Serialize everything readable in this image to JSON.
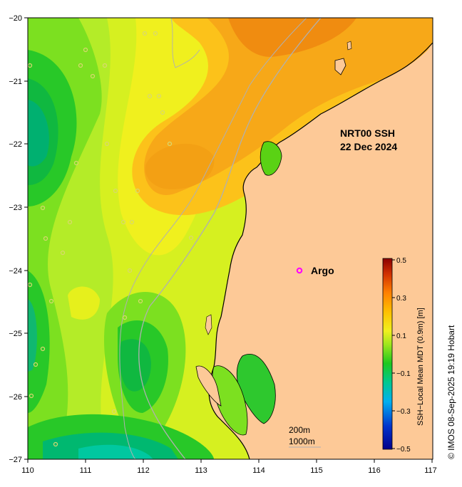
{
  "title": "NRT00 SSH",
  "date": "22 Dec 2024",
  "legend_marker": "Argo",
  "credit": "© IMOS 08-Sep-2025 19:19 Hobart",
  "scale": {
    "depth1": "200m",
    "depth2": "1000m"
  },
  "colorbar": {
    "title": "SSH−Local Mean MDT (0.9m) [m]",
    "ticks": [
      "0.5",
      "0.3",
      "0.1",
      "−0.1",
      "−0.3",
      "−0.5"
    ]
  },
  "axes": {
    "x_ticks": [
      "110",
      "111",
      "112",
      "113",
      "114",
      "115",
      "116",
      "117"
    ],
    "y_ticks": [
      "−20",
      "−21",
      "−22",
      "−23",
      "−24",
      "−25",
      "−26",
      "−27"
    ]
  },
  "colors": {
    "land": "#fdc997",
    "argo": "#ff00ff",
    "isobath": "#b0b0b0"
  }
}
